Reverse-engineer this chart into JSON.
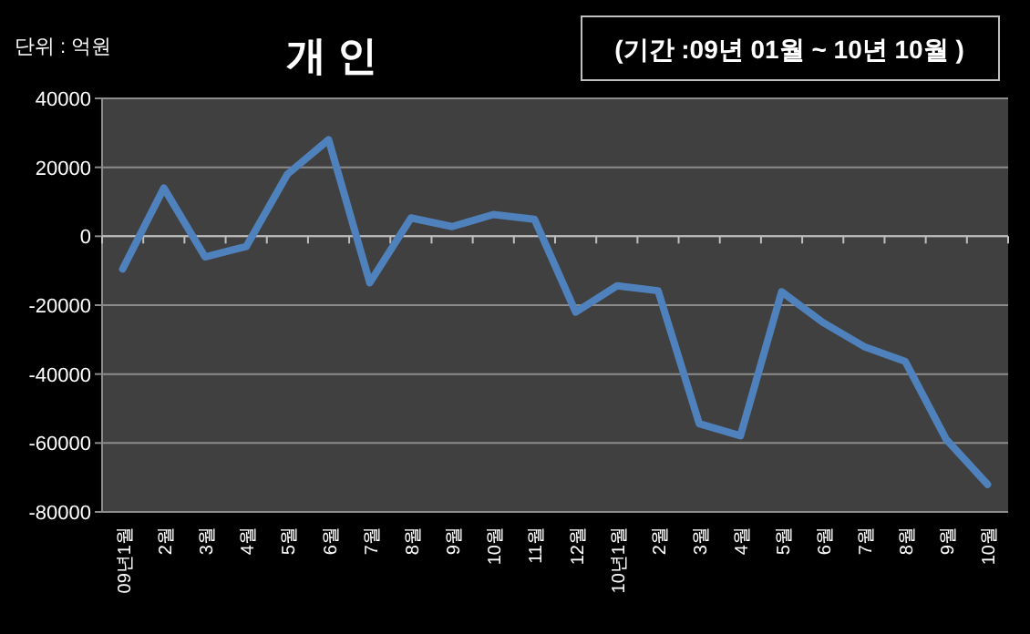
{
  "chart_data": {
    "type": "line",
    "title": "개 인",
    "annotations": [
      "단위 : 억원",
      "(기간 :09년 01월 ~ 10년 10월 )"
    ],
    "categories": [
      "09년1월",
      "2월",
      "3월",
      "4월",
      "5월",
      "6월",
      "7월",
      "8월",
      "9월",
      "10월",
      "11월",
      "12월",
      "10년1월",
      "2월",
      "3월",
      "4월",
      "5월",
      "6월",
      "7월",
      "8월",
      "9월",
      "10월"
    ],
    "series": [
      {
        "color": "#4f81bd",
        "values": [
          -9500,
          14000,
          -6000,
          -3000,
          18000,
          28000,
          -13500,
          5300,
          2800,
          6300,
          4900,
          -22000,
          -14400,
          -15800,
          -54400,
          -57900,
          -16100,
          -25000,
          -32000,
          -36300,
          -59000,
          -72000
        ]
      }
    ],
    "ylim": [
      -80000,
      40000
    ],
    "yticks": [
      -80000,
      -60000,
      -40000,
      -20000,
      0,
      20000,
      40000
    ],
    "grid": "y",
    "marker": "none",
    "line_style": "solid"
  }
}
